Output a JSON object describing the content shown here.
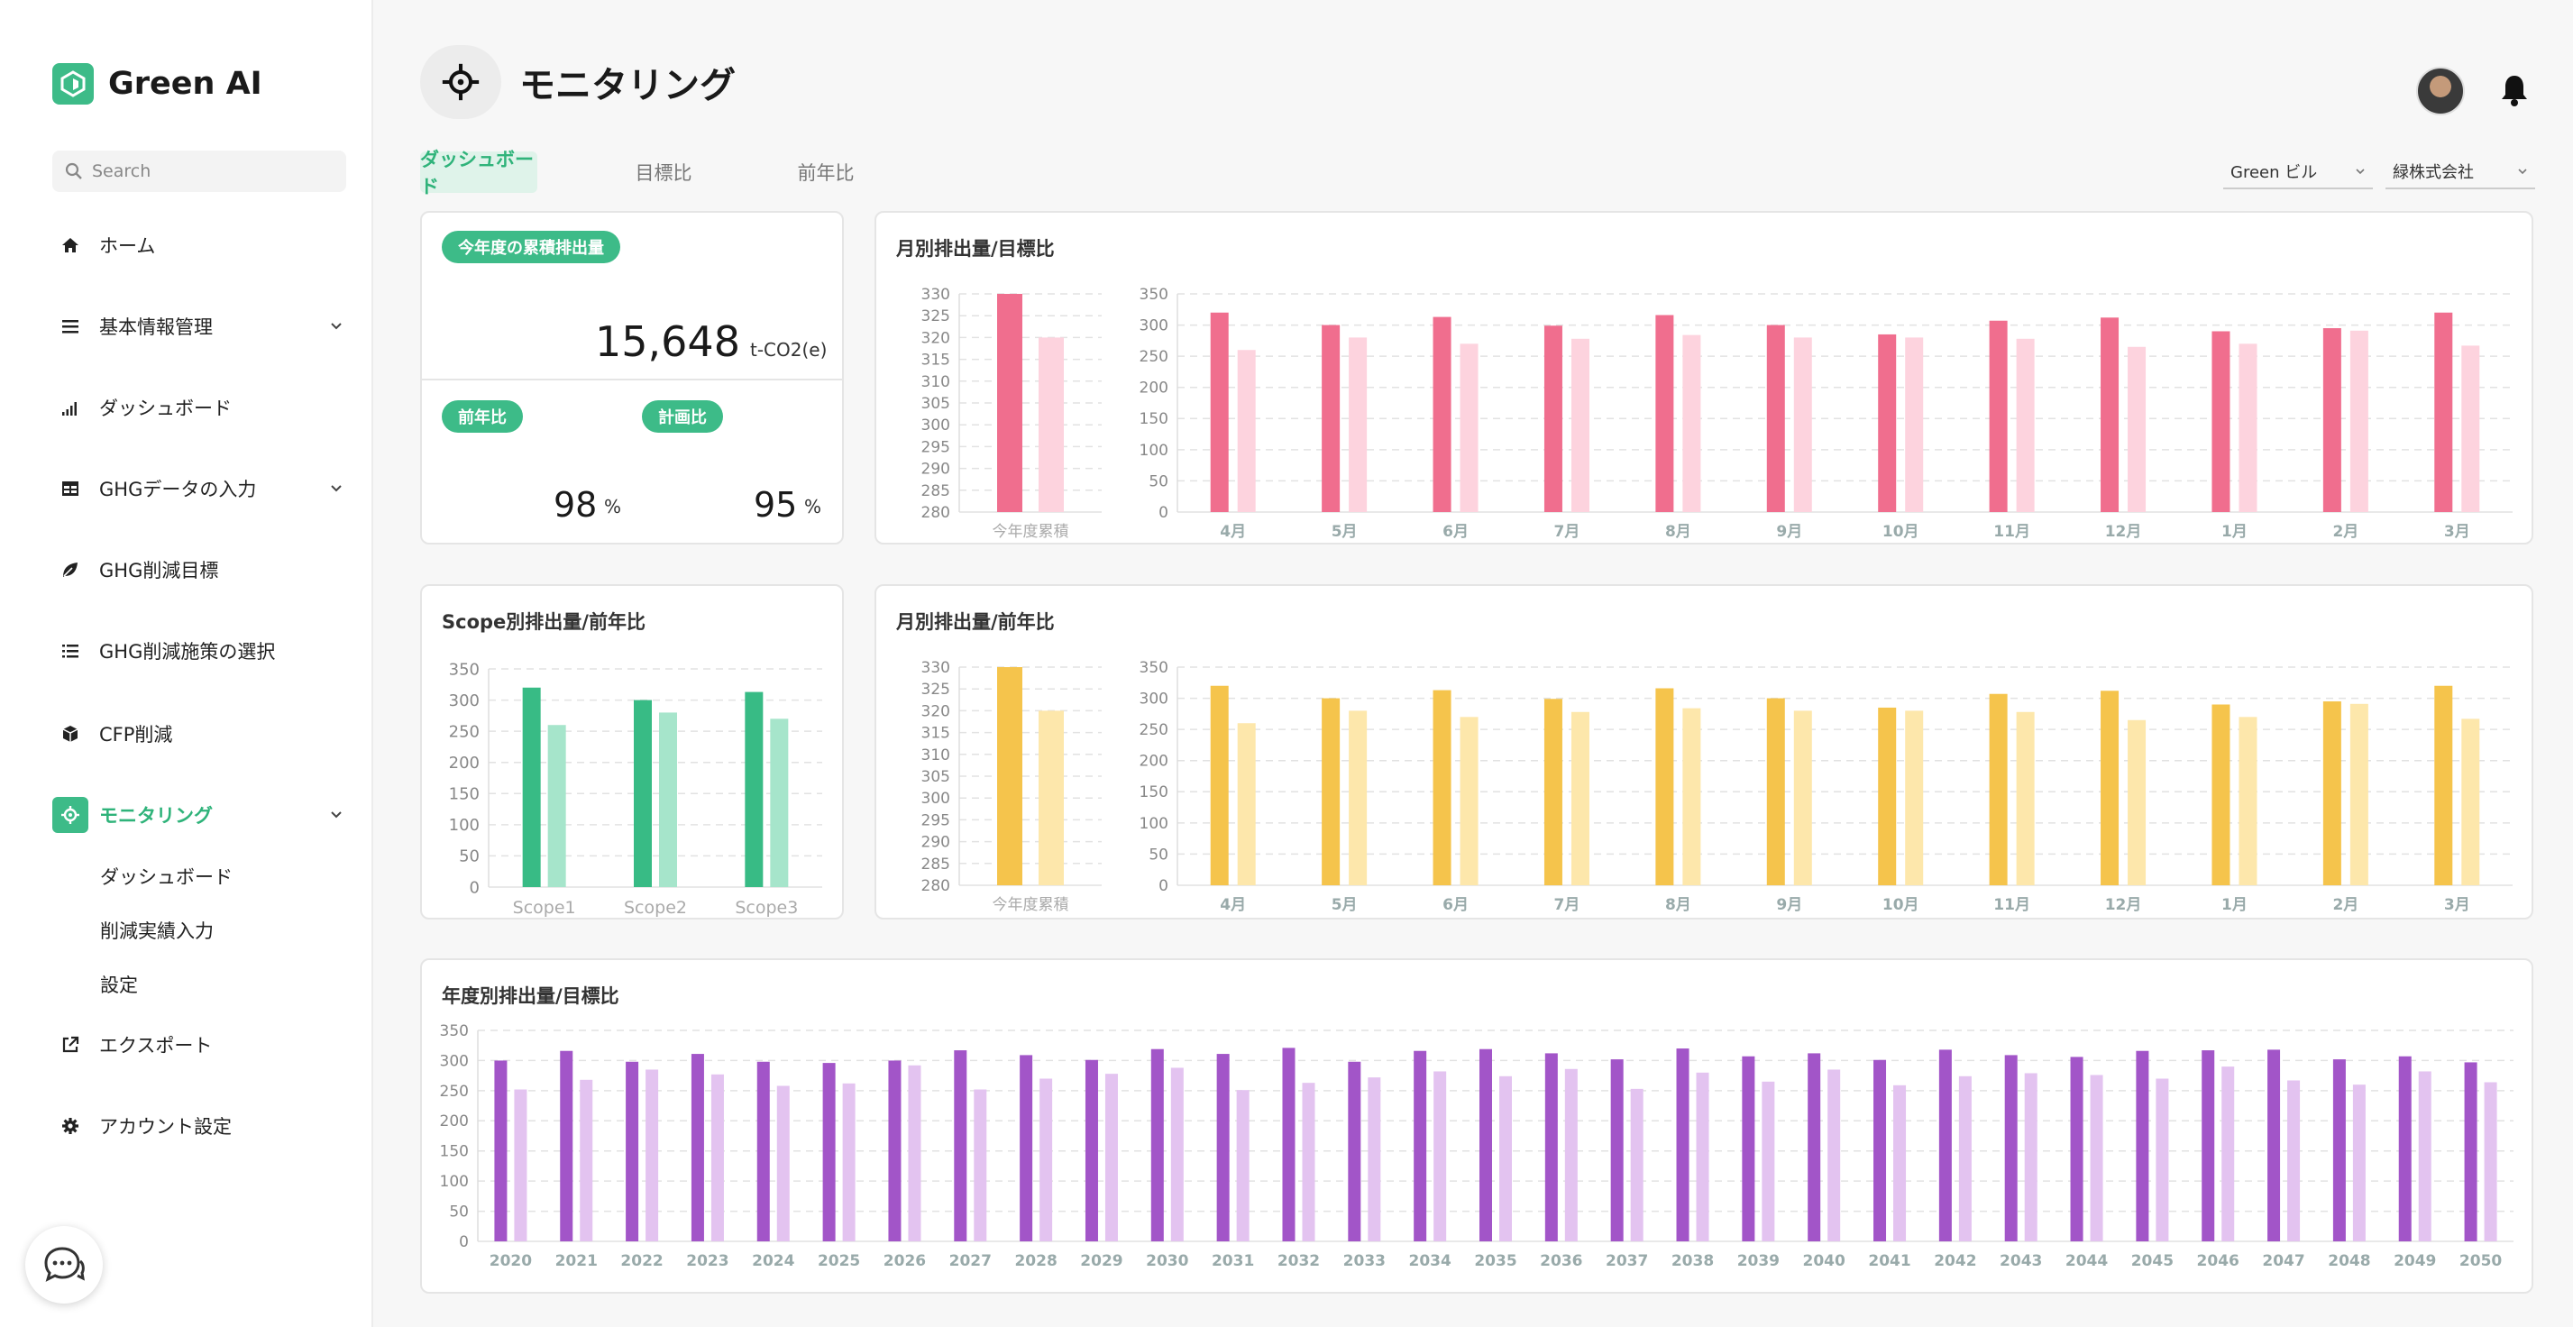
{
  "brand": {
    "name": "Green AI"
  },
  "search": {
    "placeholder": "Search"
  },
  "nav": {
    "items": [
      {
        "label": "ホーム",
        "icon": "home-icon"
      },
      {
        "label": "基本情報管理",
        "icon": "menu-icon"
      },
      {
        "label": "ダッシュボード",
        "icon": "signal-bars-icon"
      },
      {
        "label": "GHGデータの入力",
        "icon": "table-icon"
      },
      {
        "label": "GHG削減目標",
        "icon": "leaf-icon"
      },
      {
        "label": "GHG削減施策の選択",
        "icon": "list-icon"
      },
      {
        "label": "CFP削減",
        "icon": "box-icon"
      },
      {
        "label": "モニタリング",
        "icon": "crosshair-icon"
      },
      {
        "label": "エクスポート",
        "icon": "external-link-icon"
      },
      {
        "label": "アカウント設定",
        "icon": "gear-icon"
      }
    ],
    "sub_items": [
      "ダッシュボード",
      "削減実績入力",
      "設定"
    ]
  },
  "header": {
    "title": "モニタリング"
  },
  "tabs": [
    "ダッシュボード",
    "目標比",
    "前年比"
  ],
  "filters": {
    "building": "Green ビル",
    "company": "緑株式会社"
  },
  "summary": {
    "pill": "今年度の累積排出量",
    "value": "15,648",
    "unit": "t-CO2(e)",
    "yoy_label": "前年比",
    "yoy_value": "98",
    "plan_label": "計画比",
    "plan_value": "95",
    "percent": "%"
  },
  "cards": {
    "monthly_target_title": "月別排出量/目標比",
    "scope_title": "Scope別排出量/前年比",
    "monthly_yoy_title": "月別排出量/前年比",
    "annual_title": "年度別排出量/目標比"
  },
  "colors": {
    "accent": "#3dbb88",
    "pink": "#f06e8e",
    "pink_light": "#fdd3de",
    "yellow": "#f5c44c",
    "yellow_light": "#fde7ab",
    "green": "#38bb85",
    "green_light": "#a6e5cb",
    "purple": "#a255c8",
    "purple_light": "#e3c3f0"
  },
  "chart_data": [
    {
      "id": "cumulative_target",
      "type": "bar",
      "categories": [
        "今年度累積"
      ],
      "series": [
        {
          "values": [
            330
          ]
        },
        {
          "values": [
            320
          ]
        }
      ],
      "ylim": [
        280,
        330
      ],
      "yticks": [
        280,
        285,
        290,
        295,
        300,
        305,
        310,
        315,
        320,
        325,
        330
      ]
    },
    {
      "id": "monthly_target",
      "type": "bar",
      "categories": [
        "4月",
        "5月",
        "6月",
        "7月",
        "8月",
        "9月",
        "10月",
        "11月",
        "12月",
        "1月",
        "2月",
        "3月"
      ],
      "series": [
        {
          "values": [
            320,
            300,
            313,
            299,
            316,
            300,
            285,
            307,
            312,
            290,
            295,
            320
          ]
        },
        {
          "values": [
            260,
            280,
            270,
            278,
            284,
            280,
            280,
            278,
            265,
            270,
            291,
            267
          ]
        }
      ],
      "ylim": [
        0,
        350
      ],
      "yticks": [
        0,
        50,
        100,
        150,
        200,
        250,
        300,
        350
      ]
    },
    {
      "id": "scope_yoy",
      "type": "bar",
      "categories": [
        "Scope1",
        "Scope2",
        "Scope3"
      ],
      "series": [
        {
          "values": [
            320,
            300,
            313
          ]
        },
        {
          "values": [
            260,
            280,
            270
          ]
        }
      ],
      "ylim": [
        0,
        350
      ],
      "yticks": [
        0,
        50,
        100,
        150,
        200,
        250,
        300,
        350
      ]
    },
    {
      "id": "cumulative_yoy",
      "type": "bar",
      "categories": [
        "今年度累積"
      ],
      "series": [
        {
          "values": [
            330
          ]
        },
        {
          "values": [
            320
          ]
        }
      ],
      "ylim": [
        280,
        330
      ],
      "yticks": [
        280,
        285,
        290,
        295,
        300,
        305,
        310,
        315,
        320,
        325,
        330
      ]
    },
    {
      "id": "monthly_yoy",
      "type": "bar",
      "categories": [
        "4月",
        "5月",
        "6月",
        "7月",
        "8月",
        "9月",
        "10月",
        "11月",
        "12月",
        "1月",
        "2月",
        "3月"
      ],
      "series": [
        {
          "values": [
            320,
            300,
            313,
            299,
            316,
            300,
            285,
            307,
            312,
            290,
            295,
            320
          ]
        },
        {
          "values": [
            260,
            280,
            270,
            278,
            284,
            280,
            280,
            278,
            265,
            270,
            291,
            267
          ]
        }
      ],
      "ylim": [
        0,
        350
      ],
      "yticks": [
        0,
        50,
        100,
        150,
        200,
        250,
        300,
        350
      ]
    },
    {
      "id": "annual_target",
      "type": "bar",
      "categories": [
        "2020",
        "2021",
        "2022",
        "2023",
        "2024",
        "2025",
        "2026",
        "2027",
        "2028",
        "2029",
        "2030",
        "2031",
        "2032",
        "2033",
        "2034",
        "2035",
        "2036",
        "2037",
        "2038",
        "2039",
        "2040",
        "2041",
        "2042",
        "2043",
        "2044",
        "2045",
        "2046",
        "2047",
        "2048",
        "2049",
        "2050"
      ],
      "series": [
        {
          "values": [
            300,
            316,
            298,
            311,
            298,
            296,
            300,
            317,
            309,
            301,
            319,
            311,
            321,
            298,
            316,
            319,
            312,
            302,
            320,
            307,
            312,
            301,
            318,
            309,
            306,
            316,
            317,
            318,
            302,
            307,
            297
          ]
        },
        {
          "values": [
            252,
            268,
            285,
            277,
            258,
            262,
            292,
            252,
            270,
            278,
            288,
            251,
            263,
            272,
            282,
            274,
            286,
            253,
            280,
            265,
            285,
            259,
            274,
            279,
            276,
            270,
            290,
            267,
            260,
            282,
            264
          ]
        }
      ],
      "ylim": [
        0,
        350
      ],
      "yticks": [
        0,
        50,
        100,
        150,
        200,
        250,
        300,
        350
      ]
    }
  ]
}
